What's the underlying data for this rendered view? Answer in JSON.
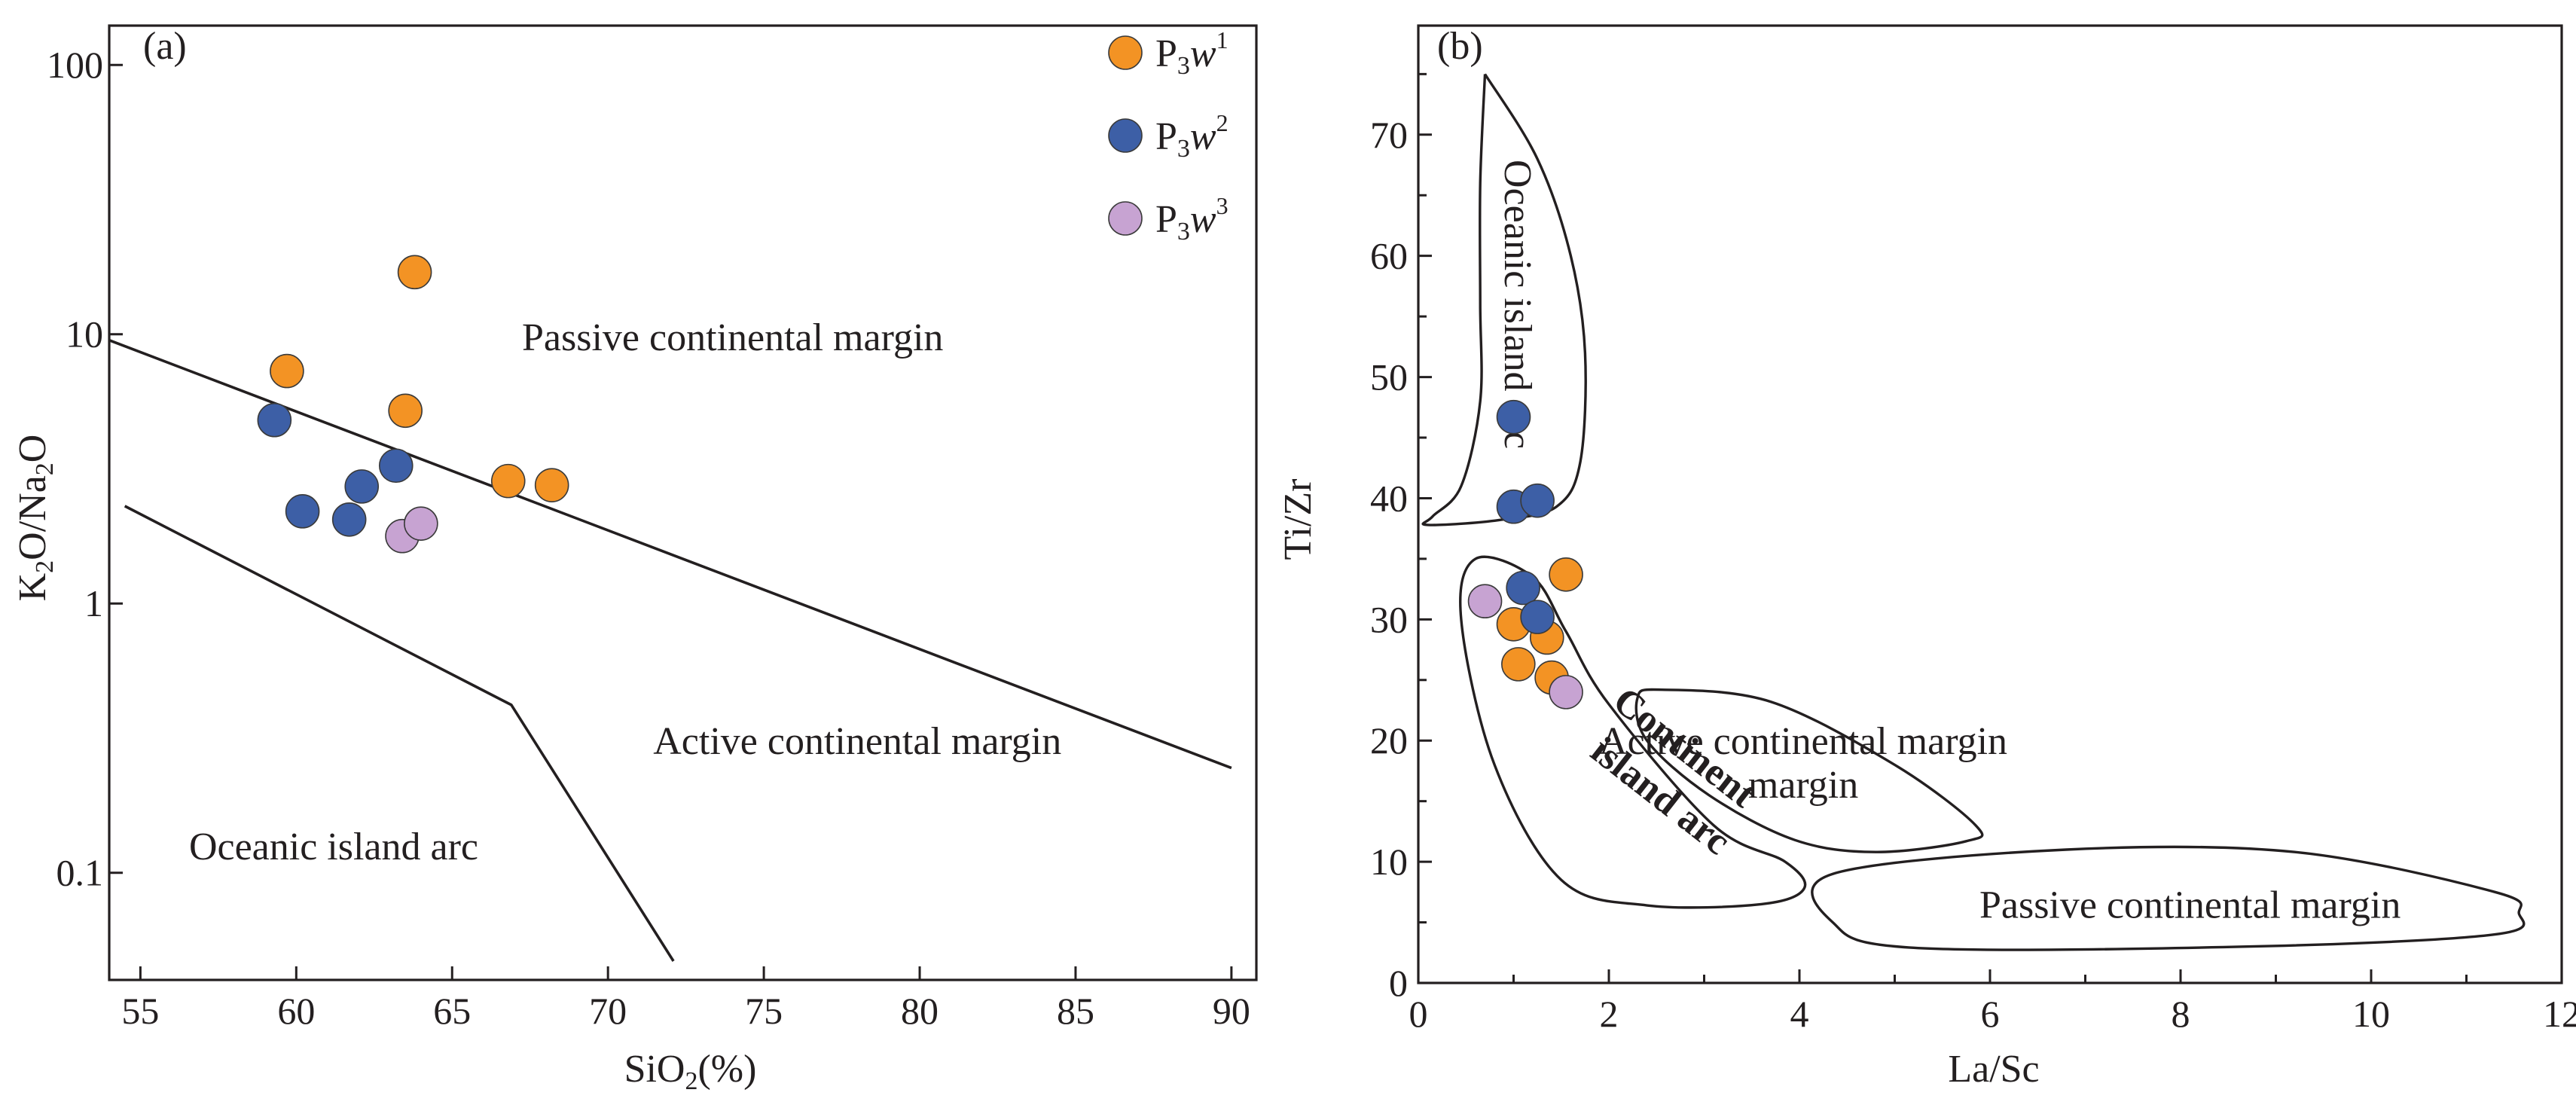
{
  "colors": {
    "series_1": "#f39324",
    "series_2": "#3d5fa6",
    "series_3": "#c7a3d2",
    "ink": "#231f20"
  },
  "chart_data": [
    {
      "panel": "(a)",
      "type": "scatter",
      "xlabel": "SiO2(%)",
      "xlabel_parts": {
        "main": "SiO",
        "sub": "2",
        "tail": "(%)"
      },
      "ylabel": "K2O/Na2O",
      "ylabel_parts": {
        "a": "K",
        "a_sub": "2",
        "b": "O/Na",
        "b_sub": "2",
        "c": "O"
      },
      "xlim": [
        54,
        90.8
      ],
      "ylim": [
        0.04,
        140
      ],
      "yscale": "log",
      "xticks": [
        55,
        60,
        65,
        70,
        75,
        80,
        85,
        90
      ],
      "yticks": [
        {
          "value": 100,
          "label": "100"
        },
        {
          "value": 10,
          "label": "10"
        },
        {
          "value": 1,
          "label": "1"
        },
        {
          "value": 0.1,
          "label": "0.1"
        }
      ],
      "boundaries": [
        {
          "name": "passive-active boundary",
          "points": [
            [
              54,
              9.5
            ],
            [
              90,
              0.245
            ]
          ]
        },
        {
          "name": "active-oceanic boundary",
          "points": [
            [
              54.5,
              2.3
            ],
            [
              66.9,
              0.42
            ],
            [
              72.1,
              0.047
            ]
          ]
        }
      ],
      "regions": [
        {
          "label": "Passive continental margin",
          "x": 74,
          "y": 9.8
        },
        {
          "label": "Active continental margin",
          "x": 78,
          "y": 0.31
        },
        {
          "label": "Oceanic island arc",
          "x": 61.2,
          "y": 0.126
        }
      ],
      "series": [
        {
          "name": "P3w1",
          "name_parts": {
            "base": "P",
            "sub": "3",
            "mid": "w",
            "sup": "1"
          },
          "color": "#f39324",
          "points": [
            [
              63.8,
              17
            ],
            [
              59.7,
              7.3
            ],
            [
              63.5,
              5.2
            ],
            [
              66.8,
              2.85
            ],
            [
              68.2,
              2.75
            ]
          ]
        },
        {
          "name": "P3w2",
          "name_parts": {
            "base": "P",
            "sub": "3",
            "mid": "w",
            "sup": "2"
          },
          "color": "#3d5fa6",
          "points": [
            [
              59.3,
              4.8
            ],
            [
              63.2,
              3.25
            ],
            [
              62.1,
              2.72
            ],
            [
              60.2,
              2.2
            ],
            [
              61.7,
              2.05
            ]
          ]
        },
        {
          "name": "P3w3",
          "name_parts": {
            "base": "P",
            "sub": "3",
            "mid": "w",
            "sup": "3"
          },
          "color": "#c7a3d2",
          "points": [
            [
              63.4,
              1.78
            ],
            [
              64.0,
              1.98
            ]
          ]
        }
      ]
    },
    {
      "panel": "(b)",
      "type": "scatter",
      "xlabel": "La/Sc",
      "ylabel": "Ti/Zr",
      "xlim": [
        0,
        12
      ],
      "ylim": [
        0,
        79
      ],
      "xticks": [
        0,
        2,
        4,
        6,
        8,
        10,
        12
      ],
      "yticks": [
        0,
        10,
        20,
        30,
        40,
        50,
        60,
        70
      ],
      "fields": [
        {
          "name": "Oceanic island arc",
          "points": [
            [
              0.7,
              75
            ],
            [
              1.25,
              68
            ],
            [
              1.6,
              60
            ],
            [
              1.75,
              52
            ],
            [
              1.7,
              43
            ],
            [
              1.45,
              39.3
            ],
            [
              0.85,
              38.2
            ],
            [
              0.1,
              37.8
            ],
            [
              0.15,
              38.5
            ],
            [
              0.45,
              41
            ],
            [
              0.65,
              48
            ],
            [
              0.65,
              56
            ],
            [
              0.65,
              66
            ],
            [
              0.7,
              75
            ]
          ]
        },
        {
          "name": "Continent island arc",
          "points": [
            [
              0.6,
              35
            ],
            [
              1.2,
              33.5
            ],
            [
              1.55,
              29
            ],
            [
              2.0,
              23
            ],
            [
              3.1,
              13
            ],
            [
              3.85,
              10
            ],
            [
              4.05,
              7.8
            ],
            [
              3.6,
              6.5
            ],
            [
              2.4,
              6.4
            ],
            [
              1.5,
              8.5
            ],
            [
              0.8,
              18
            ],
            [
              0.45,
              30
            ],
            [
              0.6,
              35
            ]
          ]
        },
        {
          "name": "Active continental margin",
          "points": [
            [
              2.3,
              23.5
            ],
            [
              2.55,
              24.2
            ],
            [
              3.7,
              23.2
            ],
            [
              5.0,
              18
            ],
            [
              5.85,
              13
            ],
            [
              5.75,
              11.7
            ],
            [
              4.8,
              10.8
            ],
            [
              3.95,
              11.8
            ],
            [
              3.05,
              15.5
            ],
            [
              2.4,
              20
            ],
            [
              2.3,
              23.5
            ]
          ]
        },
        {
          "name": "Passive continental margin",
          "points": [
            [
              4.35,
              9.0
            ],
            [
              6.8,
              11.0
            ],
            [
              9.2,
              10.8
            ],
            [
              11.3,
              7.5
            ],
            [
              11.55,
              5.8
            ],
            [
              11.3,
              4.0
            ],
            [
              8.7,
              3.0
            ],
            [
              5.2,
              2.9
            ],
            [
              4.35,
              5.0
            ],
            [
              4.35,
              9.0
            ]
          ]
        }
      ],
      "regions": [
        {
          "label": "Oceanic island arc",
          "x": 1.05,
          "y": 56,
          "rotate": 90
        },
        {
          "label": "Active continental margin",
          "x": 4.04,
          "y": 20.0
        },
        {
          "label": "margin",
          "x": 4.04,
          "y": 16.4
        },
        {
          "label": "Continent",
          "x": 2.8,
          "y": 19.5,
          "rotate": 38,
          "bold": true
        },
        {
          "label": "island arc",
          "x": 2.55,
          "y": 15.5,
          "rotate": 38,
          "bold": true
        },
        {
          "label": "Passive continental margin",
          "x": 8.1,
          "y": 6.5
        }
      ],
      "series": [
        {
          "name": "P3w1",
          "color": "#f39324",
          "points": [
            [
              1.55,
              33.7
            ],
            [
              1.0,
              29.6
            ],
            [
              1.35,
              28.5
            ],
            [
              1.05,
              26.3
            ],
            [
              1.4,
              25.2
            ]
          ]
        },
        {
          "name": "P3w2",
          "color": "#3d5fa6",
          "points": [
            [
              1.0,
              46.7
            ],
            [
              1.0,
              39.3
            ],
            [
              1.25,
              39.8
            ],
            [
              1.1,
              32.6
            ],
            [
              1.25,
              30.2
            ]
          ]
        },
        {
          "name": "P3w3",
          "color": "#c7a3d2",
          "points": [
            [
              0.7,
              31.5
            ],
            [
              1.55,
              24.0
            ]
          ]
        }
      ]
    }
  ]
}
